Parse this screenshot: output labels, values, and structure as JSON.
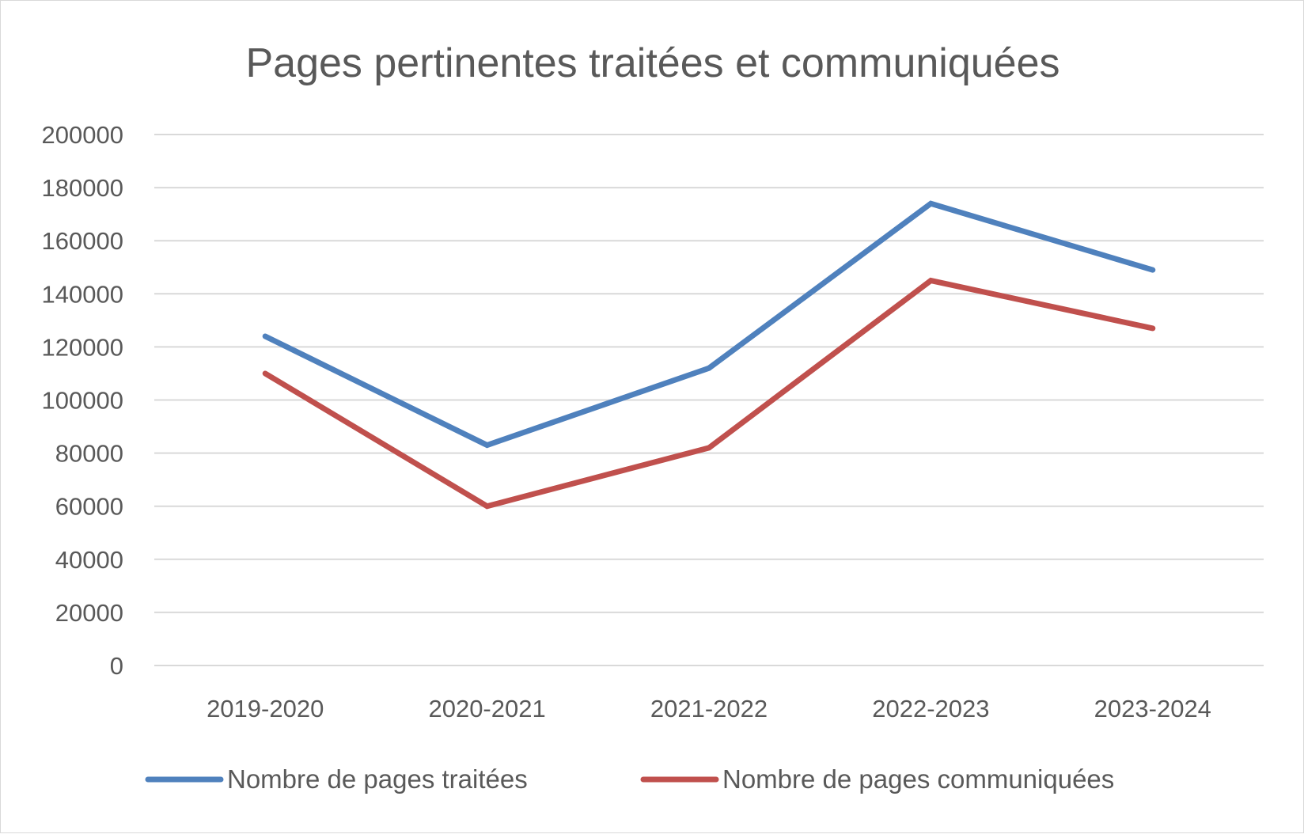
{
  "chart_data": {
    "type": "line",
    "title": "Pages pertinentes traitées et communiquées",
    "xlabel": "",
    "ylabel": "",
    "categories": [
      "2019-2020",
      "2020-2021",
      "2021-2022",
      "2022-2023",
      "2023-2024"
    ],
    "series": [
      {
        "name": "Nombre de pages traitées",
        "color": "#4F81BD",
        "values": [
          124000,
          83000,
          112000,
          174000,
          149000
        ]
      },
      {
        "name": "Nombre de pages communiquées",
        "color": "#C0504D",
        "values": [
          110000,
          60000,
          82000,
          145000,
          127000
        ]
      }
    ],
    "ylim": [
      0,
      200000
    ],
    "yticks": [
      "0",
      "20000",
      "40000",
      "60000",
      "80000",
      "100000",
      "120000",
      "140000",
      "160000",
      "180000",
      "200000"
    ],
    "grid": "horizontal",
    "gridColor": "#d9d9d9",
    "legend": "bottom"
  }
}
